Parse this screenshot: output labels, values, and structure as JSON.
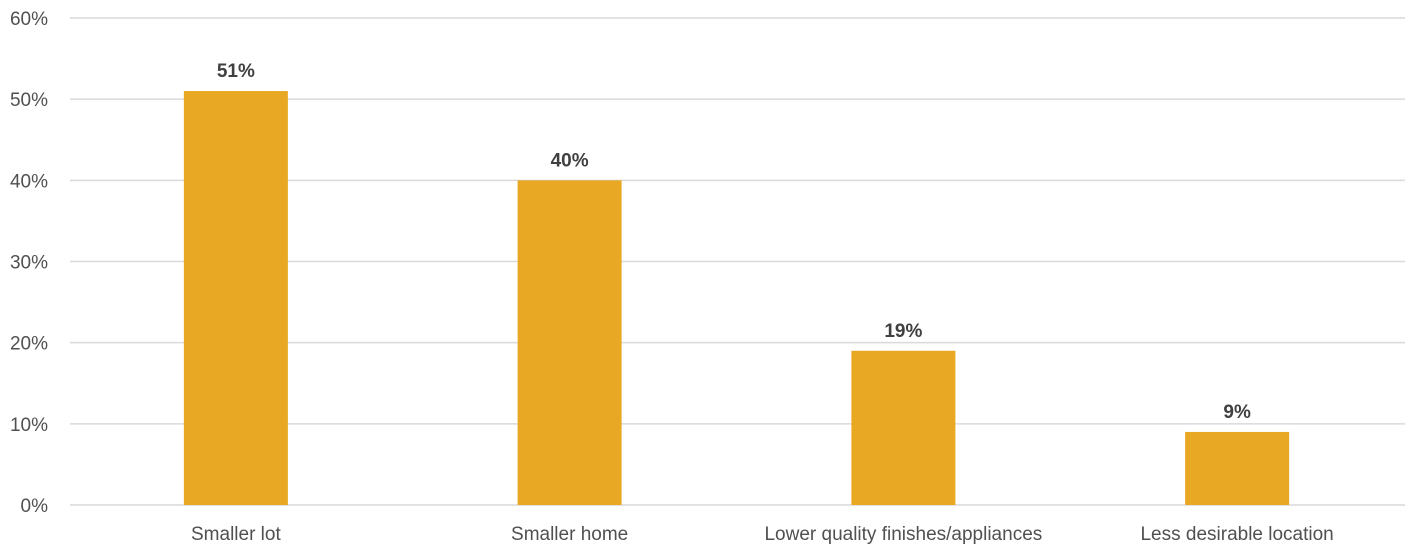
{
  "chart_data": {
    "type": "bar",
    "title": "",
    "xlabel": "",
    "ylabel": "",
    "categories": [
      "Smaller lot",
      "Smaller home",
      "Lower quality finishes/appliances",
      "Less desirable location"
    ],
    "values": [
      51,
      40,
      19,
      9
    ],
    "data_labels": [
      "51%",
      "40%",
      "19%",
      "9%"
    ],
    "ylim": [
      0,
      60
    ],
    "yticks": [
      0,
      10,
      20,
      30,
      40,
      50,
      60
    ],
    "ytick_labels": [
      "0%",
      "10%",
      "20%",
      "30%",
      "40%",
      "50%",
      "60%"
    ],
    "grid": true,
    "legend": "none",
    "colors": {
      "bar": "#E9A823",
      "gridline": "#D9D9D9",
      "text": "#505050"
    }
  }
}
